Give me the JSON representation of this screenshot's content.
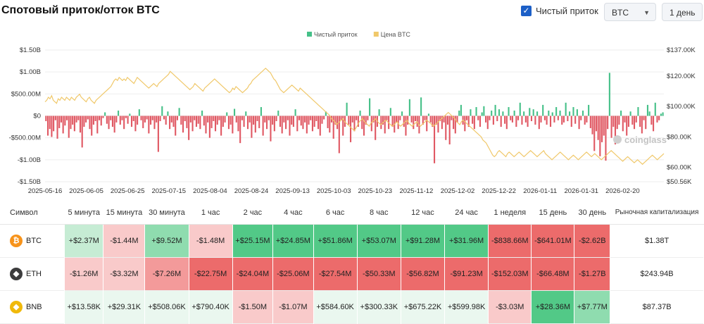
{
  "header": {
    "title": "Спотовый приток/отток BTC",
    "net_checkbox_label": "Чистый приток",
    "coin_select": "BTC",
    "interval_select": "1 день"
  },
  "chart_data": {
    "type": "bar+line",
    "legend": [
      "Чистый приток",
      "Цена BTC"
    ],
    "legend_position": "top-center",
    "colors": {
      "positive": "#45c088",
      "negative": "#e05863",
      "price": "#f0c86a"
    },
    "y_left": {
      "ticks": [
        "$1.50B",
        "$1.00B",
        "$500.00M",
        "$0",
        "-$500.00M",
        "-$1.00B",
        "-$1.50B"
      ],
      "range": [
        -1.5,
        1.5
      ],
      "unit": "B USD"
    },
    "y_right": {
      "ticks": [
        "$137.00K",
        "$120.00K",
        "$100.00K",
        "$80.00K",
        "$60.00K",
        "$50.56K"
      ],
      "values": [
        137,
        120,
        100,
        80,
        60,
        50.56
      ],
      "unit": "K USD"
    },
    "x_ticks": [
      "2025-05-16",
      "2025-06-05",
      "2025-06-25",
      "2025-07-15",
      "2025-08-04",
      "2025-08-24",
      "2025-09-13",
      "2025-10-03",
      "2025-10-23",
      "2025-11-12",
      "2025-12-02",
      "2025-12-22",
      "2026-01-11",
      "2026-01-31",
      "2026-02-20"
    ],
    "x_start": "2025-05-16",
    "x_end": "2026-03-12",
    "watermark": "coinglass",
    "net_flow_daily_billions": [
      -0.12,
      -0.45,
      -0.3,
      -0.48,
      -0.35,
      -0.1,
      -0.52,
      -0.28,
      -0.15,
      -0.4,
      -0.22,
      -0.1,
      -0.5,
      -0.3,
      -0.2,
      -0.35,
      -0.15,
      -0.1,
      -0.38,
      -0.72,
      -0.25,
      -0.15,
      -0.08,
      -0.3,
      -0.45,
      -0.2,
      -0.12,
      -0.4,
      -0.1,
      -0.22,
      -0.05,
      0.08,
      -0.18,
      -0.3,
      -0.1,
      -0.25,
      -0.38,
      -0.15,
      0.12,
      -0.2,
      -0.1,
      -0.3,
      -0.05,
      -0.18,
      0.05,
      -0.25,
      -0.12,
      -0.35,
      -0.2,
      0.15,
      -0.1,
      -0.28,
      -0.15,
      -0.08,
      -0.4,
      -0.2,
      -0.1,
      -0.3,
      -0.15,
      -0.82,
      -0.12,
      0.22,
      -0.08,
      -0.2,
      0.1,
      -0.3,
      -0.15,
      -0.25,
      -0.45,
      -0.1,
      0.18,
      -0.2,
      -0.38,
      -0.12,
      -0.28,
      -0.55,
      -0.15,
      -0.35,
      -0.1,
      -0.25,
      -0.18,
      -0.3,
      0.12,
      -0.22,
      -0.4,
      -0.15,
      -0.5,
      -0.28,
      -0.12,
      -0.35,
      -0.2,
      -0.1,
      -0.45,
      -0.25,
      -0.15,
      0.08,
      -0.3,
      -0.2,
      -0.4,
      0.16,
      -0.15,
      -0.35,
      -0.62,
      -0.1,
      -0.25,
      0.1,
      -0.3,
      -0.15,
      -0.5,
      -0.2,
      -0.38,
      -0.12,
      -0.28,
      0.2,
      -0.45,
      -0.15,
      -0.3,
      -0.1,
      -0.58,
      -0.2,
      -0.35,
      -0.12,
      0.12,
      -0.25,
      -0.4,
      -0.15,
      -0.3,
      -0.1,
      -0.45,
      -0.2,
      -0.25,
      0.15,
      -0.35,
      -0.1,
      -0.22,
      -0.3,
      -0.15,
      -0.4,
      -0.2,
      -0.1,
      -0.35,
      -0.25,
      -0.12,
      -0.3,
      -0.45,
      -0.18,
      -0.08,
      0.1,
      -0.28,
      -0.38,
      -0.15,
      -0.52,
      -0.2,
      -0.3,
      -0.85,
      -0.1,
      -0.45,
      -0.25,
      0.3,
      -0.2,
      -0.6,
      -0.15,
      -0.35,
      -0.1,
      -0.25,
      0.12,
      -0.3,
      -0.45,
      -0.2,
      -0.1,
      0.4,
      -0.35,
      -0.15,
      -0.55,
      -0.25,
      0.15,
      -0.3,
      -0.2,
      -0.4,
      -0.1,
      -0.3,
      0.18,
      -0.25,
      -0.38,
      -0.15,
      -0.3,
      -0.1,
      0.1,
      -0.25,
      -0.45,
      -0.2,
      0.38,
      -0.15,
      -0.3,
      -0.12,
      -0.25,
      -0.4,
      0.42,
      -0.2,
      -0.1,
      -0.35,
      0.05,
      -0.15,
      -0.25,
      -1.08,
      -0.2,
      -0.38,
      -0.12,
      -0.3,
      -0.15,
      -0.55,
      -0.2,
      -0.65,
      -0.1,
      -0.3,
      -0.4,
      -0.15,
      0.12,
      0.25,
      -0.2,
      -0.35,
      -0.1,
      -0.25,
      0.15,
      -0.18,
      -0.3,
      0.2,
      -0.1,
      -0.25,
      0.08,
      0.22,
      -0.15,
      -0.3,
      -0.1,
      0.12,
      -0.2,
      0.25,
      -0.12,
      0.15,
      -0.25,
      0.1,
      -0.18,
      -0.3,
      0.2,
      -0.1,
      -0.15,
      0.12,
      -0.25,
      -0.1,
      0.3,
      -0.2,
      0.1,
      -0.15,
      -0.25,
      0.18,
      -0.12,
      0.15,
      -0.2,
      0.1,
      -0.3,
      -0.15,
      0.25,
      -0.1,
      -0.2,
      0.12,
      -0.25,
      0.08,
      -0.15,
      0.2,
      -0.1,
      0.12,
      -0.2,
      -0.15,
      0.3,
      -0.12,
      0.1,
      -0.25,
      0.2,
      -0.18,
      0.15,
      -0.3,
      -0.1,
      0.12,
      -0.2,
      -0.15,
      0.25,
      -0.28,
      -0.42,
      -0.8,
      -0.35,
      -0.55,
      -0.92,
      -0.6,
      -0.45,
      -1.02,
      -0.3,
      0.98,
      -0.5,
      -0.25,
      -0.65,
      -0.3,
      -0.2,
      0.12,
      -0.35,
      -0.15,
      -0.45,
      -0.25,
      0.1,
      -0.2,
      -0.3,
      -0.15,
      0.2,
      -0.25,
      -0.4,
      -0.1,
      -0.3,
      0.25,
      0.1,
      -0.2,
      -0.35,
      0.3,
      -0.15,
      -0.1,
      0.05,
      0.08
    ],
    "price_daily_kusd": [
      103,
      104,
      106,
      105,
      107,
      104,
      103,
      102,
      105,
      104,
      106,
      105,
      104,
      106,
      105,
      104,
      106,
      105,
      104,
      106,
      107,
      108,
      106,
      105,
      104,
      103,
      105,
      106,
      104,
      103,
      102,
      104,
      105,
      106,
      107,
      108,
      109,
      110,
      111,
      112,
      113,
      115,
      117,
      118,
      117,
      119,
      118,
      117,
      118,
      117,
      119,
      118,
      117,
      116,
      115,
      117,
      119,
      118,
      117,
      116,
      115,
      114,
      113,
      112,
      113,
      114,
      115,
      114,
      113,
      115,
      116,
      117,
      118,
      119,
      120,
      121,
      123,
      122,
      121,
      120,
      119,
      118,
      117,
      116,
      115,
      114,
      113,
      112,
      111,
      112,
      113,
      115,
      114,
      113,
      112,
      111,
      110,
      112,
      113,
      114,
      115,
      116,
      117,
      118,
      117,
      116,
      115,
      114,
      113,
      112,
      111,
      110,
      109,
      110,
      112,
      111,
      113,
      112,
      111,
      110,
      109,
      110,
      111,
      112,
      114,
      115,
      117,
      118,
      119,
      120,
      121,
      122,
      123,
      124,
      125,
      124,
      123,
      122,
      120,
      118,
      117,
      115,
      113,
      111,
      110,
      109,
      110,
      111,
      112,
      113,
      114,
      113,
      112,
      111,
      110,
      112,
      111,
      110,
      109,
      108,
      107,
      106,
      105,
      104,
      103,
      102,
      101,
      100,
      99,
      98,
      97,
      96,
      95,
      94,
      92,
      91,
      90,
      88,
      89,
      90,
      91,
      92,
      90,
      89,
      88,
      87,
      86,
      85,
      84,
      86,
      88,
      90,
      91,
      92,
      90,
      89,
      88,
      87,
      89,
      90,
      91,
      92,
      90,
      89,
      88,
      89,
      90,
      91,
      90,
      89,
      88,
      87,
      88,
      89,
      90,
      88,
      87,
      88,
      89,
      90,
      91,
      89,
      88,
      87,
      88,
      89,
      90,
      88,
      87,
      88,
      89,
      90,
      91,
      90,
      89,
      88,
      87,
      88,
      89,
      90,
      91,
      92,
      93,
      94,
      95,
      96,
      95,
      94,
      93,
      92,
      90,
      89,
      88,
      90,
      91,
      90,
      89,
      88,
      87,
      86,
      85,
      84,
      83,
      82,
      81,
      80,
      78,
      77,
      76,
      74,
      72,
      70,
      68,
      67,
      68,
      70,
      71,
      70,
      69,
      68,
      67,
      69,
      70,
      69,
      68,
      67,
      68,
      69,
      70,
      69,
      68,
      67,
      68,
      69,
      70,
      71,
      70,
      69,
      68,
      67,
      68,
      69,
      70,
      71,
      69,
      68,
      67,
      66,
      65,
      66,
      67,
      68,
      69,
      70,
      69,
      68,
      67,
      66,
      65,
      66,
      67,
      68,
      67,
      66,
      65,
      66,
      67,
      68,
      69,
      70,
      69,
      68,
      67,
      68,
      69,
      68,
      67,
      66,
      65,
      66,
      67,
      68,
      69,
      70,
      71,
      70,
      69,
      68,
      67,
      66,
      65,
      64,
      65,
      66,
      67,
      66,
      65,
      64,
      63,
      64,
      65,
      64,
      63,
      62,
      63,
      64,
      65,
      66,
      67,
      68,
      67,
      66,
      65,
      66,
      67,
      68,
      69
    ]
  },
  "table": {
    "headers": [
      "Символ",
      "5 минута",
      "15 минута",
      "30 минута",
      "1 час",
      "2 час",
      "4 час",
      "6 час",
      "8 час",
      "12 час",
      "24 час",
      "1 неделя",
      "15 день",
      "30 день",
      "Рыночная капитализация"
    ],
    "rows": [
      {
        "symbol": "BTC",
        "icon": "bitcoin-icon",
        "icon_color": "#f7931a",
        "values": [
          "+$2.37M",
          "-$1.44M",
          "+$9.52M",
          "-$1.48M",
          "+$25.15M",
          "+$24.85M",
          "+$51.86M",
          "+$53.07M",
          "+$91.28M",
          "+$31.96M",
          "-$838.66M",
          "-$641.01M",
          "-$2.62B"
        ],
        "mcap": "$1.38T"
      },
      {
        "symbol": "ETH",
        "icon": "ethereum-icon",
        "icon_color": "#3c3c3d",
        "values": [
          "-$1.26M",
          "-$3.32M",
          "-$7.26M",
          "-$22.75M",
          "-$24.04M",
          "-$25.06M",
          "-$27.54M",
          "-$50.33M",
          "-$56.82M",
          "-$91.23M",
          "-$152.03M",
          "-$66.48M",
          "-$1.27B"
        ],
        "mcap": "$243.94B"
      },
      {
        "symbol": "BNB",
        "icon": "bnb-icon",
        "icon_color": "#f0b90b",
        "values": [
          "+$13.58K",
          "+$29.31K",
          "+$508.06K",
          "+$790.40K",
          "-$1.50M",
          "-$1.07M",
          "+$584.60K",
          "+$300.33K",
          "+$675.22K",
          "+$599.98K",
          "-$3.03M",
          "+$28.36M",
          "+$7.77M"
        ],
        "mcap": "$87.37B"
      }
    ]
  }
}
